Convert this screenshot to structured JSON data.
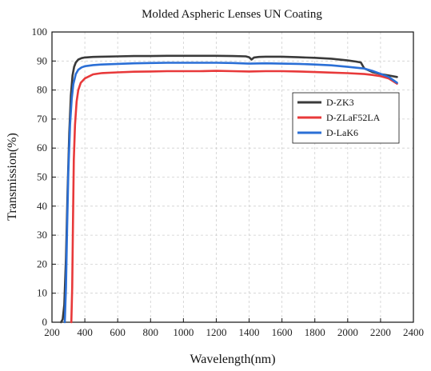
{
  "chart_data": {
    "type": "line",
    "title": "Molded Aspheric Lenses UN Coating",
    "xlabel": "Wavelength(nm)",
    "ylabel": "Transmission(%)",
    "xlim": [
      200,
      2400
    ],
    "ylim": [
      0,
      100
    ],
    "xticks": [
      200,
      400,
      600,
      800,
      1000,
      1200,
      1400,
      1600,
      1800,
      2000,
      2200,
      2400
    ],
    "yticks": [
      0,
      10,
      20,
      30,
      40,
      50,
      60,
      70,
      80,
      90,
      100
    ],
    "grid": true,
    "legend_position": "right",
    "series": [
      {
        "name": "D-ZK3",
        "color": "#3a3a3a",
        "x": [
          255,
          265,
          275,
          285,
          295,
          305,
          315,
          325,
          335,
          345,
          360,
          380,
          400,
          450,
          500,
          600,
          700,
          800,
          900,
          1000,
          1100,
          1200,
          1300,
          1380,
          1400,
          1415,
          1430,
          1460,
          1500,
          1600,
          1700,
          1800,
          1900,
          2000,
          2050,
          2080,
          2100,
          2150,
          2200,
          2250,
          2300
        ],
        "y": [
          0,
          1,
          6,
          22,
          45,
          65,
          78,
          85,
          88,
          89.5,
          90.5,
          91,
          91.2,
          91.4,
          91.5,
          91.6,
          91.7,
          91.7,
          91.8,
          91.8,
          91.8,
          91.8,
          91.7,
          91.6,
          91.3,
          90.5,
          91.2,
          91.4,
          91.5,
          91.5,
          91.3,
          91.1,
          90.8,
          90.2,
          89.8,
          89.5,
          87.5,
          86.2,
          85.5,
          85.0,
          84.5
        ]
      },
      {
        "name": "D-ZLaF52LA",
        "color": "#e8393a",
        "x": [
          318,
          323,
          328,
          333,
          340,
          350,
          360,
          375,
          400,
          450,
          500,
          600,
          700,
          800,
          900,
          1000,
          1100,
          1200,
          1300,
          1400,
          1500,
          1600,
          1700,
          1800,
          1900,
          2000,
          2100,
          2150,
          2200,
          2250,
          2300
        ],
        "y": [
          0,
          12,
          35,
          56,
          68,
          76,
          80,
          82.5,
          84,
          85.4,
          85.8,
          86.1,
          86.3,
          86.4,
          86.5,
          86.5,
          86.5,
          86.6,
          86.5,
          86.4,
          86.5,
          86.5,
          86.4,
          86.2,
          86.0,
          85.8,
          85.5,
          85.2,
          84.8,
          84.0,
          82.2
        ]
      },
      {
        "name": "D-LaK6",
        "color": "#2b6fd6",
        "x": [
          278,
          285,
          292,
          300,
          310,
          320,
          330,
          345,
          360,
          380,
          400,
          450,
          500,
          600,
          700,
          800,
          900,
          1000,
          1100,
          1200,
          1300,
          1400,
          1500,
          1600,
          1700,
          1800,
          1900,
          2000,
          2100,
          2150,
          2200,
          2250,
          2300
        ],
        "y": [
          0,
          12,
          32,
          52,
          68,
          77,
          82,
          85.5,
          87,
          87.8,
          88.2,
          88.6,
          88.8,
          89,
          89.2,
          89.3,
          89.4,
          89.4,
          89.4,
          89.4,
          89.3,
          89.1,
          89.2,
          89.1,
          89.0,
          88.8,
          88.5,
          88.0,
          87.4,
          86.6,
          85.6,
          84.5,
          82.5
        ]
      }
    ]
  }
}
